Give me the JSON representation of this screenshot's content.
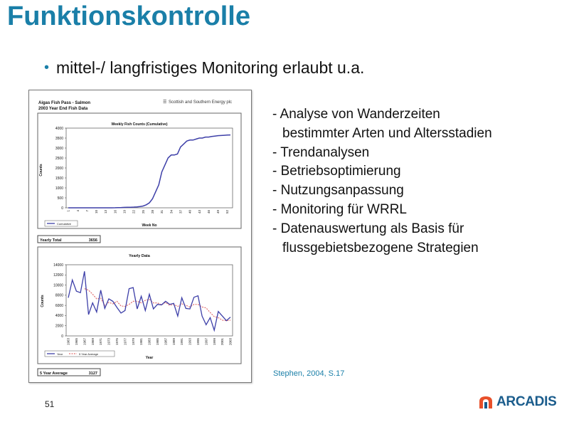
{
  "slide": {
    "title": "Funktionskontrolle",
    "bullet": "mittel-/ langfristiges Monitoring erlaubt u.a.",
    "list": [
      "- Analyse von Wanderzeiten",
      "bestimmter Arten und Altersstadien",
      "- Trendanalysen",
      "- Betriebsoptimierung",
      "- Nutzungsanpassung",
      "- Monitoring für WRRL",
      "- Datenauswertung als Basis für",
      "flussgebietsbezogene Strategien"
    ],
    "citation": "Stephen, 2004, S.17",
    "page_number": "51",
    "logo_text": "ARCADIS",
    "colors": {
      "accent": "#1a7fa8",
      "logo": "#1a5c8c",
      "logo_icon": "#e8502a",
      "series": "#3d3fa8",
      "avg": "#e07070"
    }
  },
  "report": {
    "header_line1": "Aigas Fish Pass - Salmon",
    "header_line2": "2003 Year End Fish Data",
    "company": "Scottish and Southern Energy plc",
    "yearly_total_label": "Yearly Total",
    "yearly_total_value": "3656",
    "avg_label": "5 Year Average",
    "avg_value": "3127"
  },
  "chart_data": [
    {
      "type": "line",
      "title": "Weekly Fish Counts (Cumulative)",
      "xlabel": "Week No",
      "ylabel": "Counts",
      "ylim": [
        0,
        4000
      ],
      "yticks": [
        0,
        500,
        1000,
        1500,
        2000,
        2500,
        3000,
        3500,
        4000
      ],
      "xticks": [
        "1",
        "4",
        "7",
        "10",
        "13",
        "16",
        "19",
        "22",
        "25",
        "28",
        "31",
        "34",
        "37",
        "40",
        "43",
        "46",
        "49",
        "52"
      ],
      "legend": [
        "Cumulative"
      ],
      "legend_position": "bottom-left",
      "grid": false,
      "series": [
        {
          "name": "Cumulative",
          "x": [
            1,
            2,
            3,
            4,
            5,
            6,
            7,
            8,
            9,
            10,
            11,
            12,
            13,
            14,
            15,
            16,
            17,
            18,
            19,
            20,
            21,
            22,
            23,
            24,
            25,
            26,
            27,
            28,
            29,
            30,
            31,
            32,
            33,
            34,
            35,
            36,
            37,
            38,
            39,
            40,
            41,
            42,
            43,
            44,
            45,
            46,
            47,
            48,
            49,
            50,
            51,
            52,
            53
          ],
          "values": [
            0,
            0,
            0,
            0,
            0,
            0,
            0,
            0,
            0,
            0,
            0,
            0,
            0,
            0,
            0,
            5,
            10,
            15,
            20,
            25,
            30,
            35,
            45,
            60,
            90,
            150,
            250,
            450,
            800,
            1150,
            1800,
            2150,
            2500,
            2650,
            2650,
            2700,
            3050,
            3200,
            3350,
            3400,
            3400,
            3450,
            3500,
            3500,
            3550,
            3550,
            3580,
            3600,
            3620,
            3630,
            3640,
            3650,
            3656
          ]
        }
      ]
    },
    {
      "type": "line",
      "title": "Yearly Data",
      "xlabel": "Year",
      "ylabel": "Counts",
      "ylim": [
        0,
        14000
      ],
      "yticks": [
        0,
        2000,
        4000,
        6000,
        8000,
        10000,
        12000,
        14000
      ],
      "xticks": [
        "1963",
        "1965",
        "1967",
        "1969",
        "1971",
        "1973",
        "1975",
        "1977",
        "1979",
        "1981",
        "1983",
        "1985",
        "1987",
        "1989",
        "1991",
        "1993",
        "1995",
        "1997",
        "1999",
        "2001",
        "2003"
      ],
      "legend": [
        "Year",
        "5 Year Average"
      ],
      "legend_position": "bottom-left",
      "grid": false,
      "categories": [
        1963,
        1964,
        1965,
        1966,
        1967,
        1968,
        1969,
        1970,
        1971,
        1972,
        1973,
        1974,
        1975,
        1976,
        1977,
        1978,
        1979,
        1980,
        1981,
        1982,
        1983,
        1984,
        1985,
        1986,
        1987,
        1988,
        1989,
        1990,
        1991,
        1992,
        1993,
        1994,
        1995,
        1996,
        1997,
        1998,
        1999,
        2000,
        2001,
        2002,
        2003
      ],
      "series": [
        {
          "name": "Year",
          "values": [
            7500,
            11000,
            8800,
            8500,
            12700,
            4200,
            6500,
            4700,
            9000,
            5400,
            7300,
            6800,
            5600,
            4500,
            5000,
            9300,
            9500,
            5300,
            7800,
            5000,
            8200,
            5300,
            6200,
            6100,
            6800,
            6200,
            6400,
            3900,
            7500,
            5400,
            5300,
            7600,
            7900,
            3900,
            2200,
            3600,
            1100,
            4800,
            3900,
            3000,
            3700
          ]
        },
        {
          "name": "5 Year Average",
          "values": [
            null,
            null,
            null,
            null,
            9300,
            9000,
            8200,
            7300,
            7400,
            6000,
            6600,
            6300,
            6800,
            5900,
            5800,
            6200,
            6800,
            6800,
            6500,
            7000,
            7200,
            6500,
            6500,
            6100,
            6600,
            6000,
            6200,
            5800,
            6300,
            6000,
            5700,
            6200,
            6200,
            5700,
            5500,
            4600,
            3800,
            3600,
            3100,
            3000,
            3100
          ]
        }
      ]
    }
  ]
}
